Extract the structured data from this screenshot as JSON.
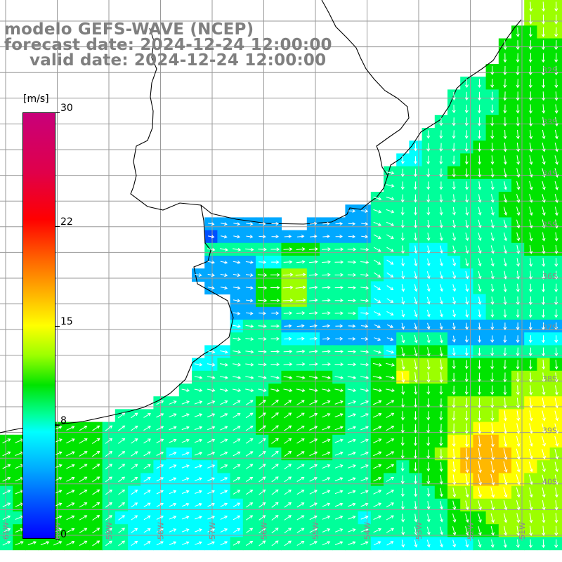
{
  "title": {
    "line1": "modelo GEFS-WAVE (NCEP)",
    "line2": "forecast date: 2024-12-24 12:00:00",
    "line3": "valid date: 2024-12-24 12:00:00"
  },
  "colorbar": {
    "units": "[m/s]",
    "min": 0,
    "max": 30,
    "labels": [
      {
        "text": "30",
        "value": 30
      },
      {
        "text": "22",
        "value": 22
      },
      {
        "text": "15",
        "value": 15
      },
      {
        "text": "8",
        "value": 8
      },
      {
        "text": "0",
        "value": 0
      }
    ],
    "colors": [
      "#0000ff",
      "#0050ff",
      "#00a8ff",
      "#00ffff",
      "#00ff9a",
      "#00e400",
      "#9cff00",
      "#ffff00",
      "#ffb800",
      "#ff6a00",
      "#ff0000",
      "#e0004a",
      "#c8007a"
    ]
  },
  "map": {
    "lat_labels": [
      "32S",
      "33S",
      "34S",
      "35S",
      "36S",
      "37S",
      "38S",
      "39S",
      "40S"
    ],
    "lon_labels": [
      "61W",
      "60W",
      "59W",
      "58W",
      "57W",
      "56W",
      "55W",
      "54W",
      "53W",
      "52W",
      "51W"
    ],
    "coastline_color": "#000000",
    "grid_color": "#9a9a9a",
    "arrow_color": "#ffffff"
  }
}
